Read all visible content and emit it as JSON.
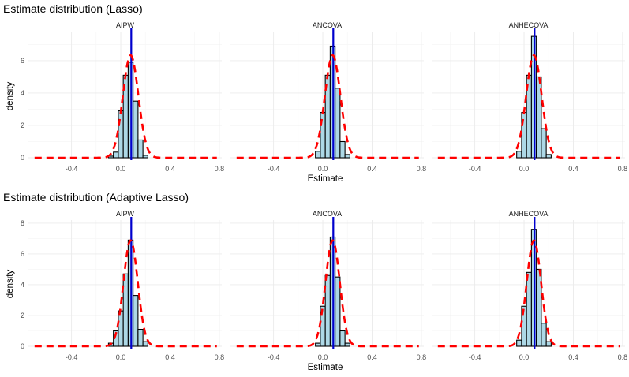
{
  "chart_data": [
    {
      "type": "bar",
      "title": "Estimate distribution (Lasso)",
      "xlabel": "Estimate",
      "ylabel": "density",
      "xlim": [
        -0.75,
        0.82
      ],
      "ylim": [
        0,
        7.8
      ],
      "xticks": [
        -0.4,
        0.0,
        0.4,
        0.8
      ],
      "xtick_labels": [
        "-0.4",
        "0.0",
        "0.4",
        "0.8"
      ],
      "yticks": [
        0,
        2,
        4,
        6
      ],
      "ytick_labels": [
        "0",
        "2",
        "4",
        "6"
      ],
      "grid": true,
      "bin_width": 0.04,
      "bin_centers": [
        -0.08,
        -0.04,
        0.0,
        0.04,
        0.08,
        0.12,
        0.16,
        0.2,
        0.24
      ],
      "density_curve": {
        "x_min": -0.7,
        "x_max": 0.78,
        "mean": 0.08,
        "sd": 0.063
      },
      "true_value": 0.085,
      "facets": [
        {
          "name": "AIPW",
          "values": [
            0.1,
            0.35,
            2.9,
            5.1,
            5.9,
            3.5,
            1.1,
            0.15,
            0.0
          ]
        },
        {
          "name": "ANCOVA",
          "values": [
            0.0,
            0.4,
            2.8,
            5.1,
            6.9,
            4.3,
            1.0,
            0.2,
            0.0
          ]
        },
        {
          "name": "ANHECOVA",
          "values": [
            0.0,
            0.4,
            2.8,
            5.1,
            7.5,
            5.0,
            1.8,
            0.2,
            0.0
          ]
        }
      ]
    },
    {
      "type": "bar",
      "title": "Estimate distribution (Adaptive Lasso)",
      "xlabel": "Estimate",
      "ylabel": "density",
      "xlim": [
        -0.75,
        0.82
      ],
      "ylim": [
        0,
        8.2
      ],
      "xticks": [
        -0.4,
        0.0,
        0.4,
        0.8
      ],
      "xtick_labels": [
        "-0.4",
        "0.0",
        "0.4",
        "0.8"
      ],
      "yticks": [
        0,
        2,
        4,
        6,
        8
      ],
      "ytick_labels": [
        "0",
        "2",
        "4",
        "6",
        "8"
      ],
      "grid": true,
      "bin_width": 0.04,
      "bin_centers": [
        -0.08,
        -0.04,
        0.0,
        0.04,
        0.08,
        0.12,
        0.16,
        0.2,
        0.24
      ],
      "density_curve": {
        "x_min": -0.7,
        "x_max": 0.78,
        "mean": 0.08,
        "sd": 0.058
      },
      "true_value": 0.085,
      "facets": [
        {
          "name": "AIPW",
          "values": [
            0.2,
            1.0,
            2.3,
            4.7,
            6.9,
            3.3,
            1.1,
            0.3,
            0.0
          ]
        },
        {
          "name": "ANCOVA",
          "values": [
            0.0,
            0.2,
            2.6,
            4.6,
            7.1,
            4.5,
            1.0,
            0.2,
            0.0
          ]
        },
        {
          "name": "ANHECOVA",
          "values": [
            0.0,
            0.4,
            2.6,
            4.8,
            7.6,
            5.0,
            1.5,
            0.3,
            0.0
          ]
        }
      ]
    }
  ]
}
